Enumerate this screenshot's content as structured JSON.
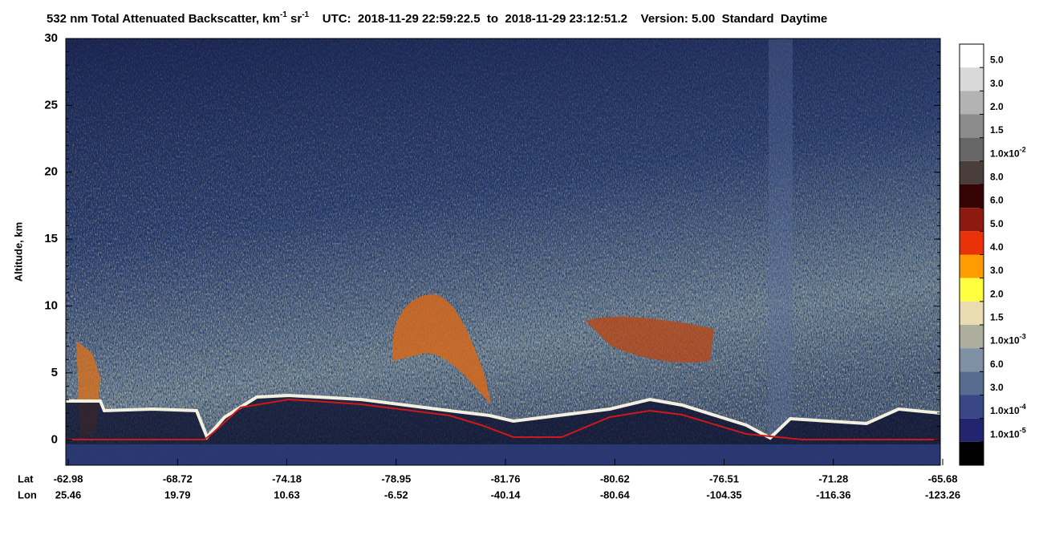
{
  "chart_data": {
    "type": "curtain",
    "title": [
      {
        "text": "532 nm Total Attenuated Backscatter, km"
      },
      {
        "text": "-1",
        "sup": true
      },
      {
        "text": " sr"
      },
      {
        "text": "-1",
        "sup": true
      },
      {
        "text": "    UTC:  2018-11-29 22:59:22.5  to  2018-11-29 23:12:51.2    Version: 5.00  Standard  Daytime"
      }
    ],
    "y_label": "Altitude, km",
    "ylim": [
      -1.9,
      30
    ],
    "yticks": [
      0,
      5,
      10,
      15,
      20,
      25,
      30
    ],
    "x_row_labels": [
      "Lat",
      "Lon"
    ],
    "lat": [
      -62.98,
      -68.72,
      -74.18,
      -78.95,
      -81.76,
      -80.62,
      -76.51,
      -71.28,
      -65.68
    ],
    "lon": [
      25.46,
      19.79,
      10.63,
      -6.52,
      -40.14,
      -80.64,
      -104.35,
      -116.36,
      -123.26
    ],
    "colorbar": {
      "colors": [
        "#ffffff",
        "#d9d9d9",
        "#b3b3b3",
        "#8c8c8c",
        "#666666",
        "#4a3e3b",
        "#360404",
        "#8c1a10",
        "#ea3209",
        "#ff9c00",
        "#ffff40",
        "#e8dcb0",
        "#aeae9f",
        "#7e90a3",
        "#566b8e",
        "#3a4786",
        "#22246f",
        "#000000"
      ],
      "labels": [
        {
          "text": "5.0"
        },
        {
          "text": "3.0"
        },
        {
          "text": "2.0"
        },
        {
          "text": "1.5"
        },
        {
          "text": "1.0x10",
          "sup": "-2"
        },
        {
          "text": "8.0"
        },
        {
          "text": "6.0"
        },
        {
          "text": "5.0"
        },
        {
          "text": "4.0"
        },
        {
          "text": "3.0"
        },
        {
          "text": "2.0"
        },
        {
          "text": "1.5"
        },
        {
          "text": "1.0x10",
          "sup": "-3"
        },
        {
          "text": "6.0"
        },
        {
          "text": "3.0"
        },
        {
          "text": "1.0x10",
          "sup": "-4"
        },
        {
          "text": "1.0x10",
          "sup": "-5"
        }
      ]
    }
  }
}
